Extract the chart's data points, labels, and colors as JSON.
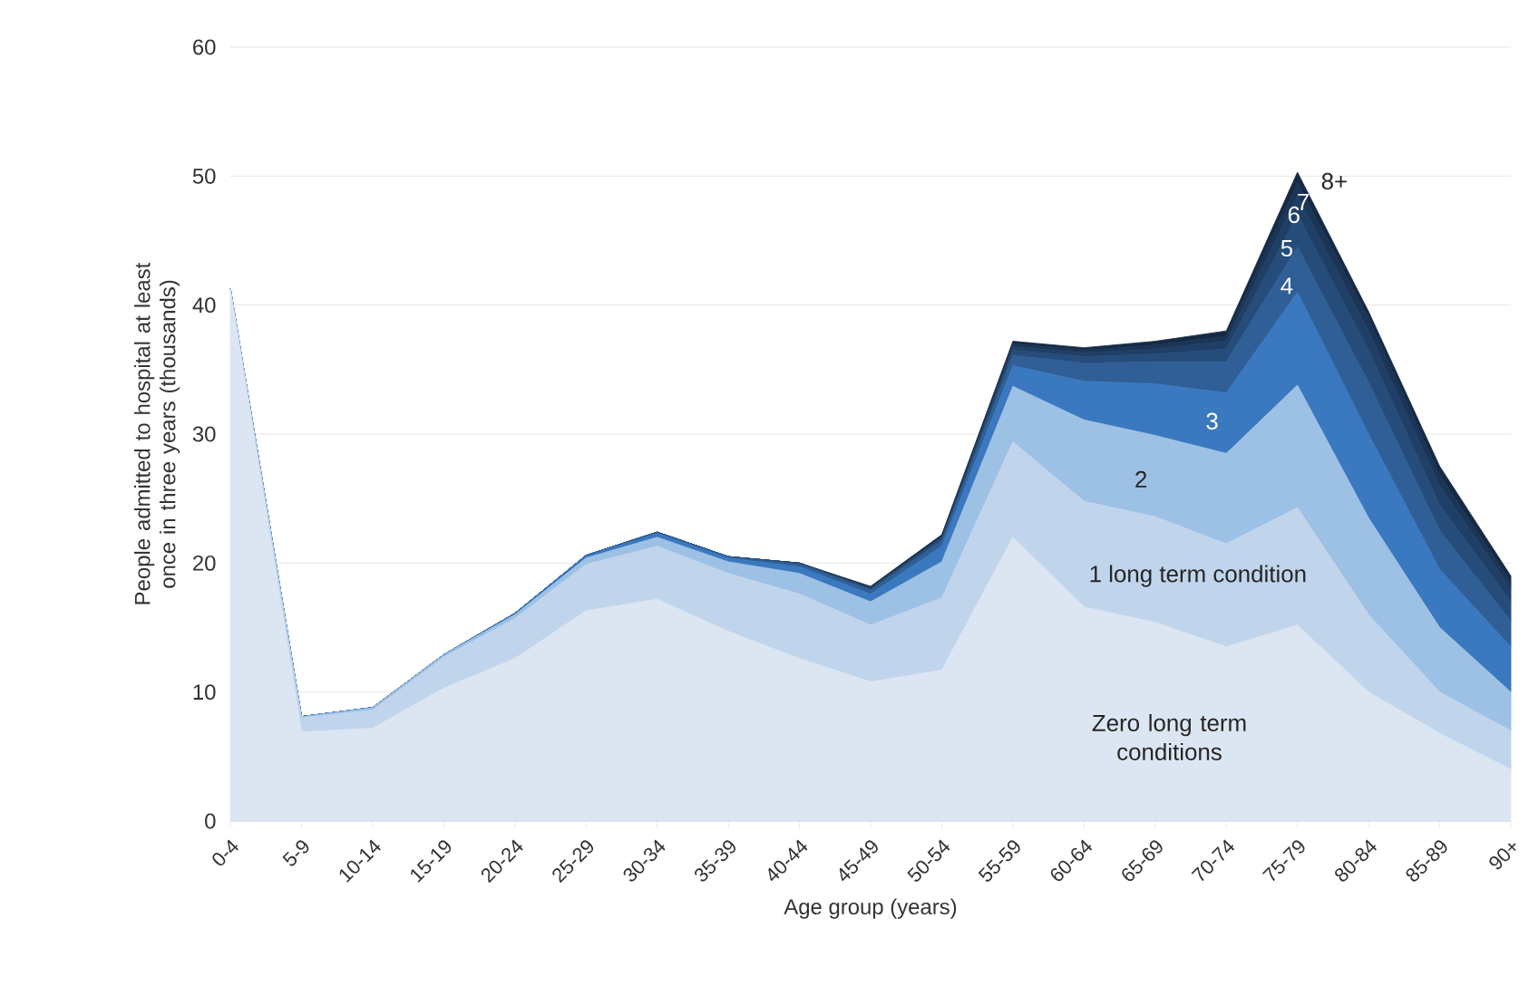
{
  "chart_data": {
    "type": "area",
    "stacked": true,
    "xlabel": "Age group (years)",
    "ylabel": "People admitted to hospital at least once in three years (thousands)",
    "categories": [
      "0-4",
      "5-9",
      "10-14",
      "15-19",
      "20-24",
      "25-29",
      "30-34",
      "35-39",
      "40-44",
      "45-49",
      "50-54",
      "55-59",
      "60-64",
      "65-69",
      "70-74",
      "75-79",
      "80-84",
      "85-89",
      "90+"
    ],
    "ylim": [
      0,
      60
    ],
    "yticks": [
      0,
      10,
      20,
      30,
      40,
      50,
      60
    ],
    "grid": "y",
    "series": [
      {
        "name": "Zero long term conditions",
        "color": "#dce6f2",
        "values": [
          41.2,
          6.9,
          7.2,
          10.3,
          12.6,
          16.3,
          17.2,
          14.7,
          12.6,
          10.8,
          11.7,
          22.0,
          16.6,
          15.4,
          13.5,
          15.2,
          10.0,
          6.8,
          4.0
        ]
      },
      {
        "name": "1 long term condition",
        "color": "#c0d5ec",
        "values": [
          0.1,
          1.1,
          1.4,
          2.4,
          3.1,
          3.6,
          4.1,
          4.5,
          5.0,
          4.4,
          5.6,
          7.4,
          8.2,
          8.2,
          8.0,
          9.1,
          6.0,
          3.2,
          3.0
        ]
      },
      {
        "name": "2",
        "color": "#9dc0e5",
        "values": [
          0,
          0.1,
          0.2,
          0.2,
          0.3,
          0.5,
          0.7,
          0.9,
          1.6,
          1.8,
          2.8,
          4.3,
          6.3,
          6.3,
          7.0,
          9.5,
          7.5,
          5.0,
          3.0
        ]
      },
      {
        "name": "3",
        "color": "#3a78bf",
        "values": [
          0,
          0,
          0,
          0,
          0.1,
          0.2,
          0.3,
          0.3,
          0.5,
          0.6,
          1.2,
          1.6,
          3.0,
          4.0,
          4.7,
          7.2,
          6.5,
          4.5,
          3.5
        ]
      },
      {
        "name": "4",
        "color": "#2f5f96",
        "values": [
          0,
          0,
          0,
          0,
          0,
          0,
          0.1,
          0.1,
          0.2,
          0.3,
          0.4,
          0.8,
          1.4,
          1.7,
          2.4,
          3.5,
          4.0,
          3.0,
          2.0
        ]
      },
      {
        "name": "5",
        "color": "#264d7a",
        "values": [
          0,
          0,
          0,
          0,
          0,
          0,
          0,
          0,
          0.1,
          0.1,
          0.2,
          0.4,
          0.5,
          0.6,
          1.0,
          2.5,
          2.5,
          2.0,
          1.5
        ]
      },
      {
        "name": "6",
        "color": "#203f66",
        "values": [
          0,
          0,
          0,
          0,
          0,
          0,
          0,
          0,
          0,
          0.1,
          0.1,
          0.3,
          0.3,
          0.4,
          0.6,
          1.5,
          1.5,
          1.5,
          1.0
        ]
      },
      {
        "name": "7",
        "color": "#1b3556",
        "values": [
          0,
          0,
          0,
          0,
          0,
          0,
          0,
          0,
          0,
          0,
          0.1,
          0.2,
          0.2,
          0.3,
          0.4,
          1.0,
          1.0,
          0.8,
          0.5
        ]
      },
      {
        "name": "8+",
        "color": "#162a45",
        "values": [
          0,
          0,
          0,
          0,
          0,
          0,
          0,
          0,
          0,
          0.1,
          0.1,
          0.2,
          0.2,
          0.3,
          0.4,
          0.8,
          0.5,
          0.7,
          0.5
        ]
      }
    ]
  }
}
